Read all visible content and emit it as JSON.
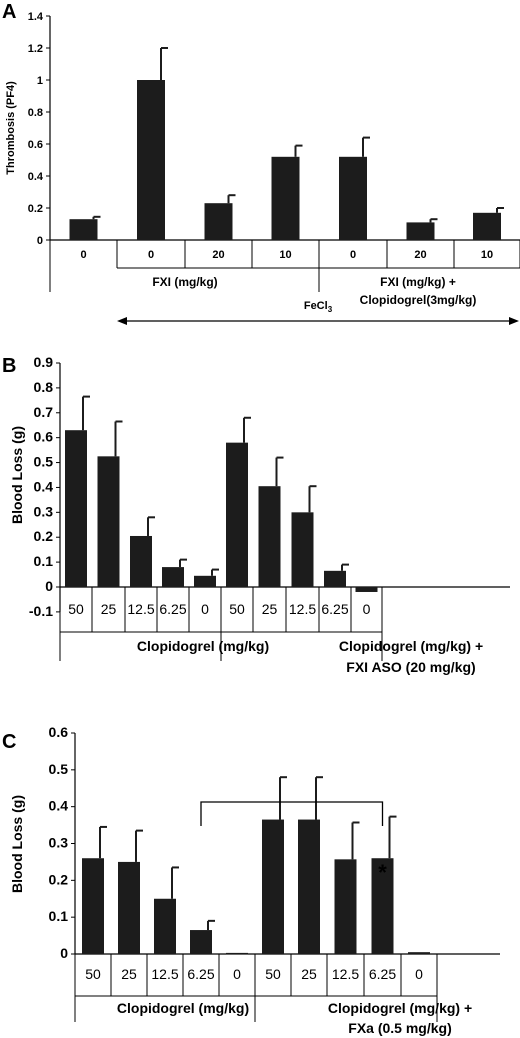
{
  "chart_data": [
    {
      "panel": "A",
      "type": "bar",
      "ylabel": "Thrombosis (PF4)",
      "ylim": [
        0,
        1.4
      ],
      "yticks": [
        "0",
        "0.2",
        "0.4",
        "0.6",
        "0.8",
        "1",
        "1.2",
        "1.4"
      ],
      "categories": [
        "0",
        "0",
        "20",
        "10",
        "0",
        "20",
        "10"
      ],
      "values": [
        0.13,
        1.0,
        0.23,
        0.52,
        0.52,
        0.11,
        0.17
      ],
      "errors": [
        0.015,
        0.2,
        0.05,
        0.07,
        0.12,
        0.02,
        0.03
      ],
      "groups": [
        {
          "label": "FXI (mg/kg)"
        },
        {
          "label": "FXI (mg/kg) +",
          "label2": "Clopidogrel(3mg/kg)"
        }
      ],
      "arrow_label": "FeCl",
      "arrow_sub": "3"
    },
    {
      "panel": "B",
      "type": "bar",
      "ylabel": "Blood Loss (g)",
      "ylim": [
        -0.1,
        0.9
      ],
      "yticks": [
        "-0.1",
        "0",
        "0.1",
        "0.2",
        "0.3",
        "0.4",
        "0.5",
        "0.6",
        "0.7",
        "0.8",
        "0.9"
      ],
      "categories": [
        "50",
        "25",
        "12.5",
        "6.25",
        "0",
        "50",
        "25",
        "12.5",
        "6.25",
        "0"
      ],
      "values": [
        0.63,
        0.525,
        0.205,
        0.08,
        0.045,
        0.58,
        0.405,
        0.3,
        0.065,
        -0.02
      ],
      "errors": [
        0.135,
        0.14,
        0.075,
        0.03,
        0.025,
        0.1,
        0.115,
        0.105,
        0.025,
        0
      ],
      "groups": [
        {
          "label": "Clopidogrel (mg/kg)"
        },
        {
          "label": "Clopidogrel (mg/kg) +",
          "label2": "FXI ASO (20 mg/kg)"
        }
      ]
    },
    {
      "panel": "C",
      "type": "bar",
      "ylabel": "Blood Loss (g)",
      "ylim": [
        0,
        0.6
      ],
      "yticks": [
        "0",
        "0.1",
        "0.2",
        "0.3",
        "0.4",
        "0.5",
        "0.6"
      ],
      "categories": [
        "50",
        "25",
        "12.5",
        "6.25",
        "0",
        "50",
        "25",
        "12.5",
        "6.25",
        "0"
      ],
      "values": [
        0.26,
        0.25,
        0.15,
        0.065,
        0.003,
        0.365,
        0.365,
        0.257,
        0.26,
        0.005
      ],
      "errors": [
        0.085,
        0.085,
        0.085,
        0.025,
        0,
        0.115,
        0.115,
        0.1,
        0.113,
        0
      ],
      "groups": [
        {
          "label": "Clopidogrel (mg/kg)"
        },
        {
          "label": "Clopidogrel (mg/kg) +",
          "label2": "FXa (0.5 mg/kg)"
        }
      ],
      "significance": {
        "from": 3,
        "to": 8,
        "marker": "*"
      }
    }
  ],
  "colors": {
    "bar": "#1c1c1c",
    "axis": "#000000"
  }
}
